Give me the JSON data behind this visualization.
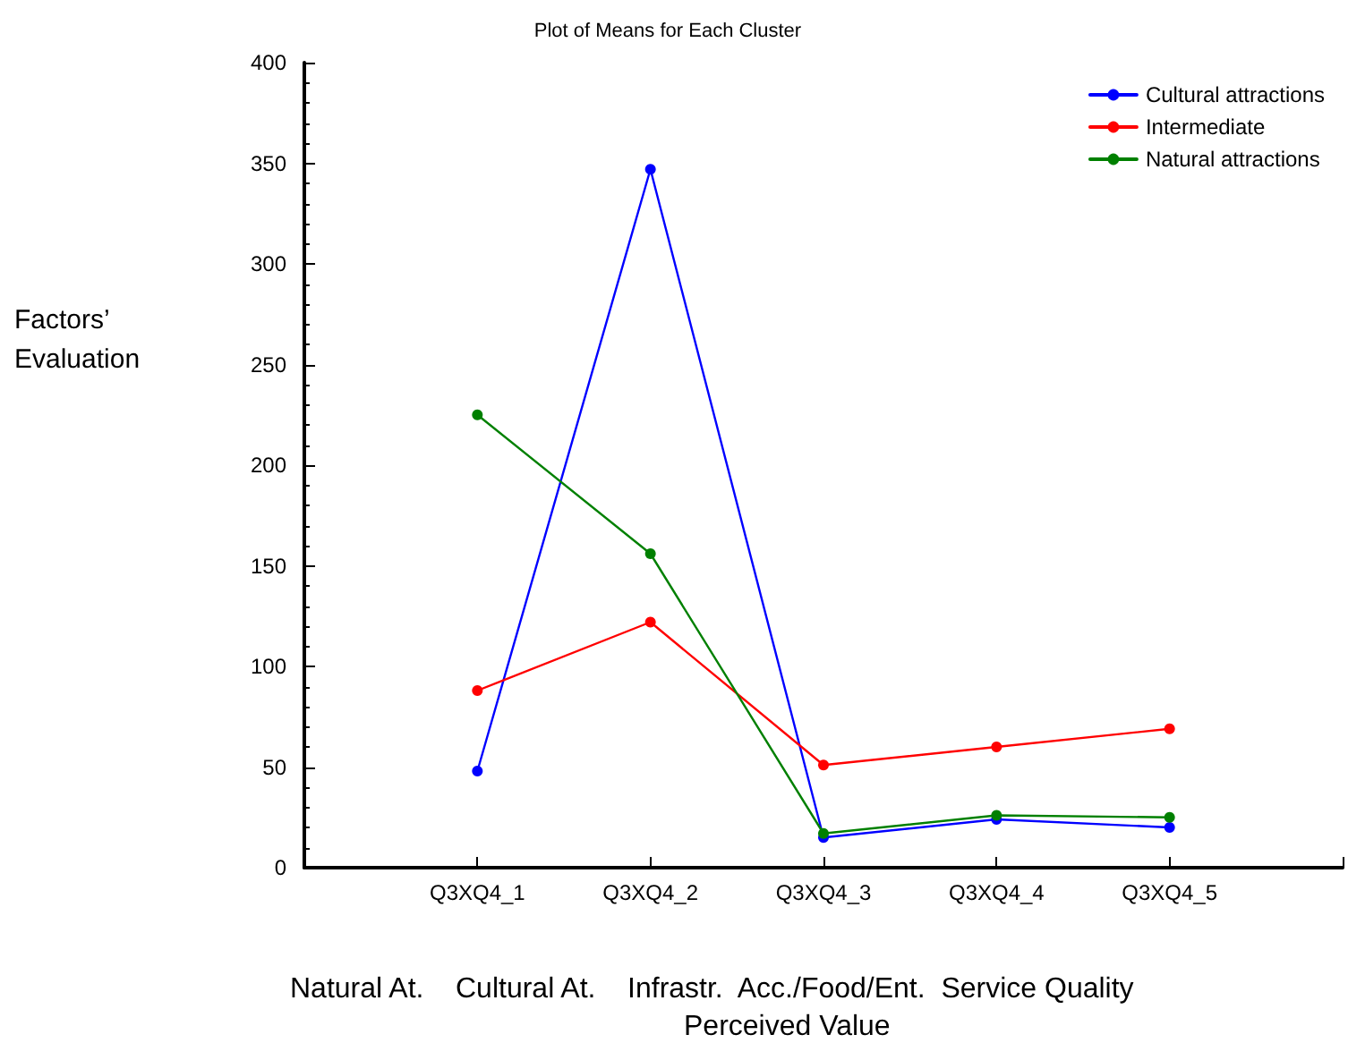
{
  "chart_data": {
    "type": "line",
    "title": "Plot of Means for Each Cluster",
    "ylabel": "Factors’ Evaluation",
    "categories": [
      null,
      "Q3XQ4_1",
      "Q3XQ4_2",
      "Q3XQ4_3",
      "Q3XQ4_4",
      "Q3XQ4_5",
      null
    ],
    "series": [
      {
        "name": "Cultural attractions",
        "color": "#0000ff",
        "values": [
          null,
          48,
          347,
          15,
          24,
          20,
          null
        ]
      },
      {
        "name": "Intermediate",
        "color": "#ff0000",
        "values": [
          null,
          88,
          122,
          51,
          60,
          69,
          null
        ]
      },
      {
        "name": "Natural attractions",
        "color": "#008000",
        "values": [
          null,
          225,
          156,
          17,
          26,
          25,
          null
        ]
      }
    ],
    "ylim": [
      0,
      400
    ],
    "yticks": [
      0,
      50,
      100,
      150,
      200,
      250,
      300,
      350,
      400
    ],
    "annotations": [
      "Natural At.    Cultural At.    Infrastr.  Acc./Food/Ent.  Service Quality",
      "Perceived Value"
    ],
    "grid": false,
    "legend": "top right",
    "marker": "circle",
    "line_style": "solid"
  }
}
